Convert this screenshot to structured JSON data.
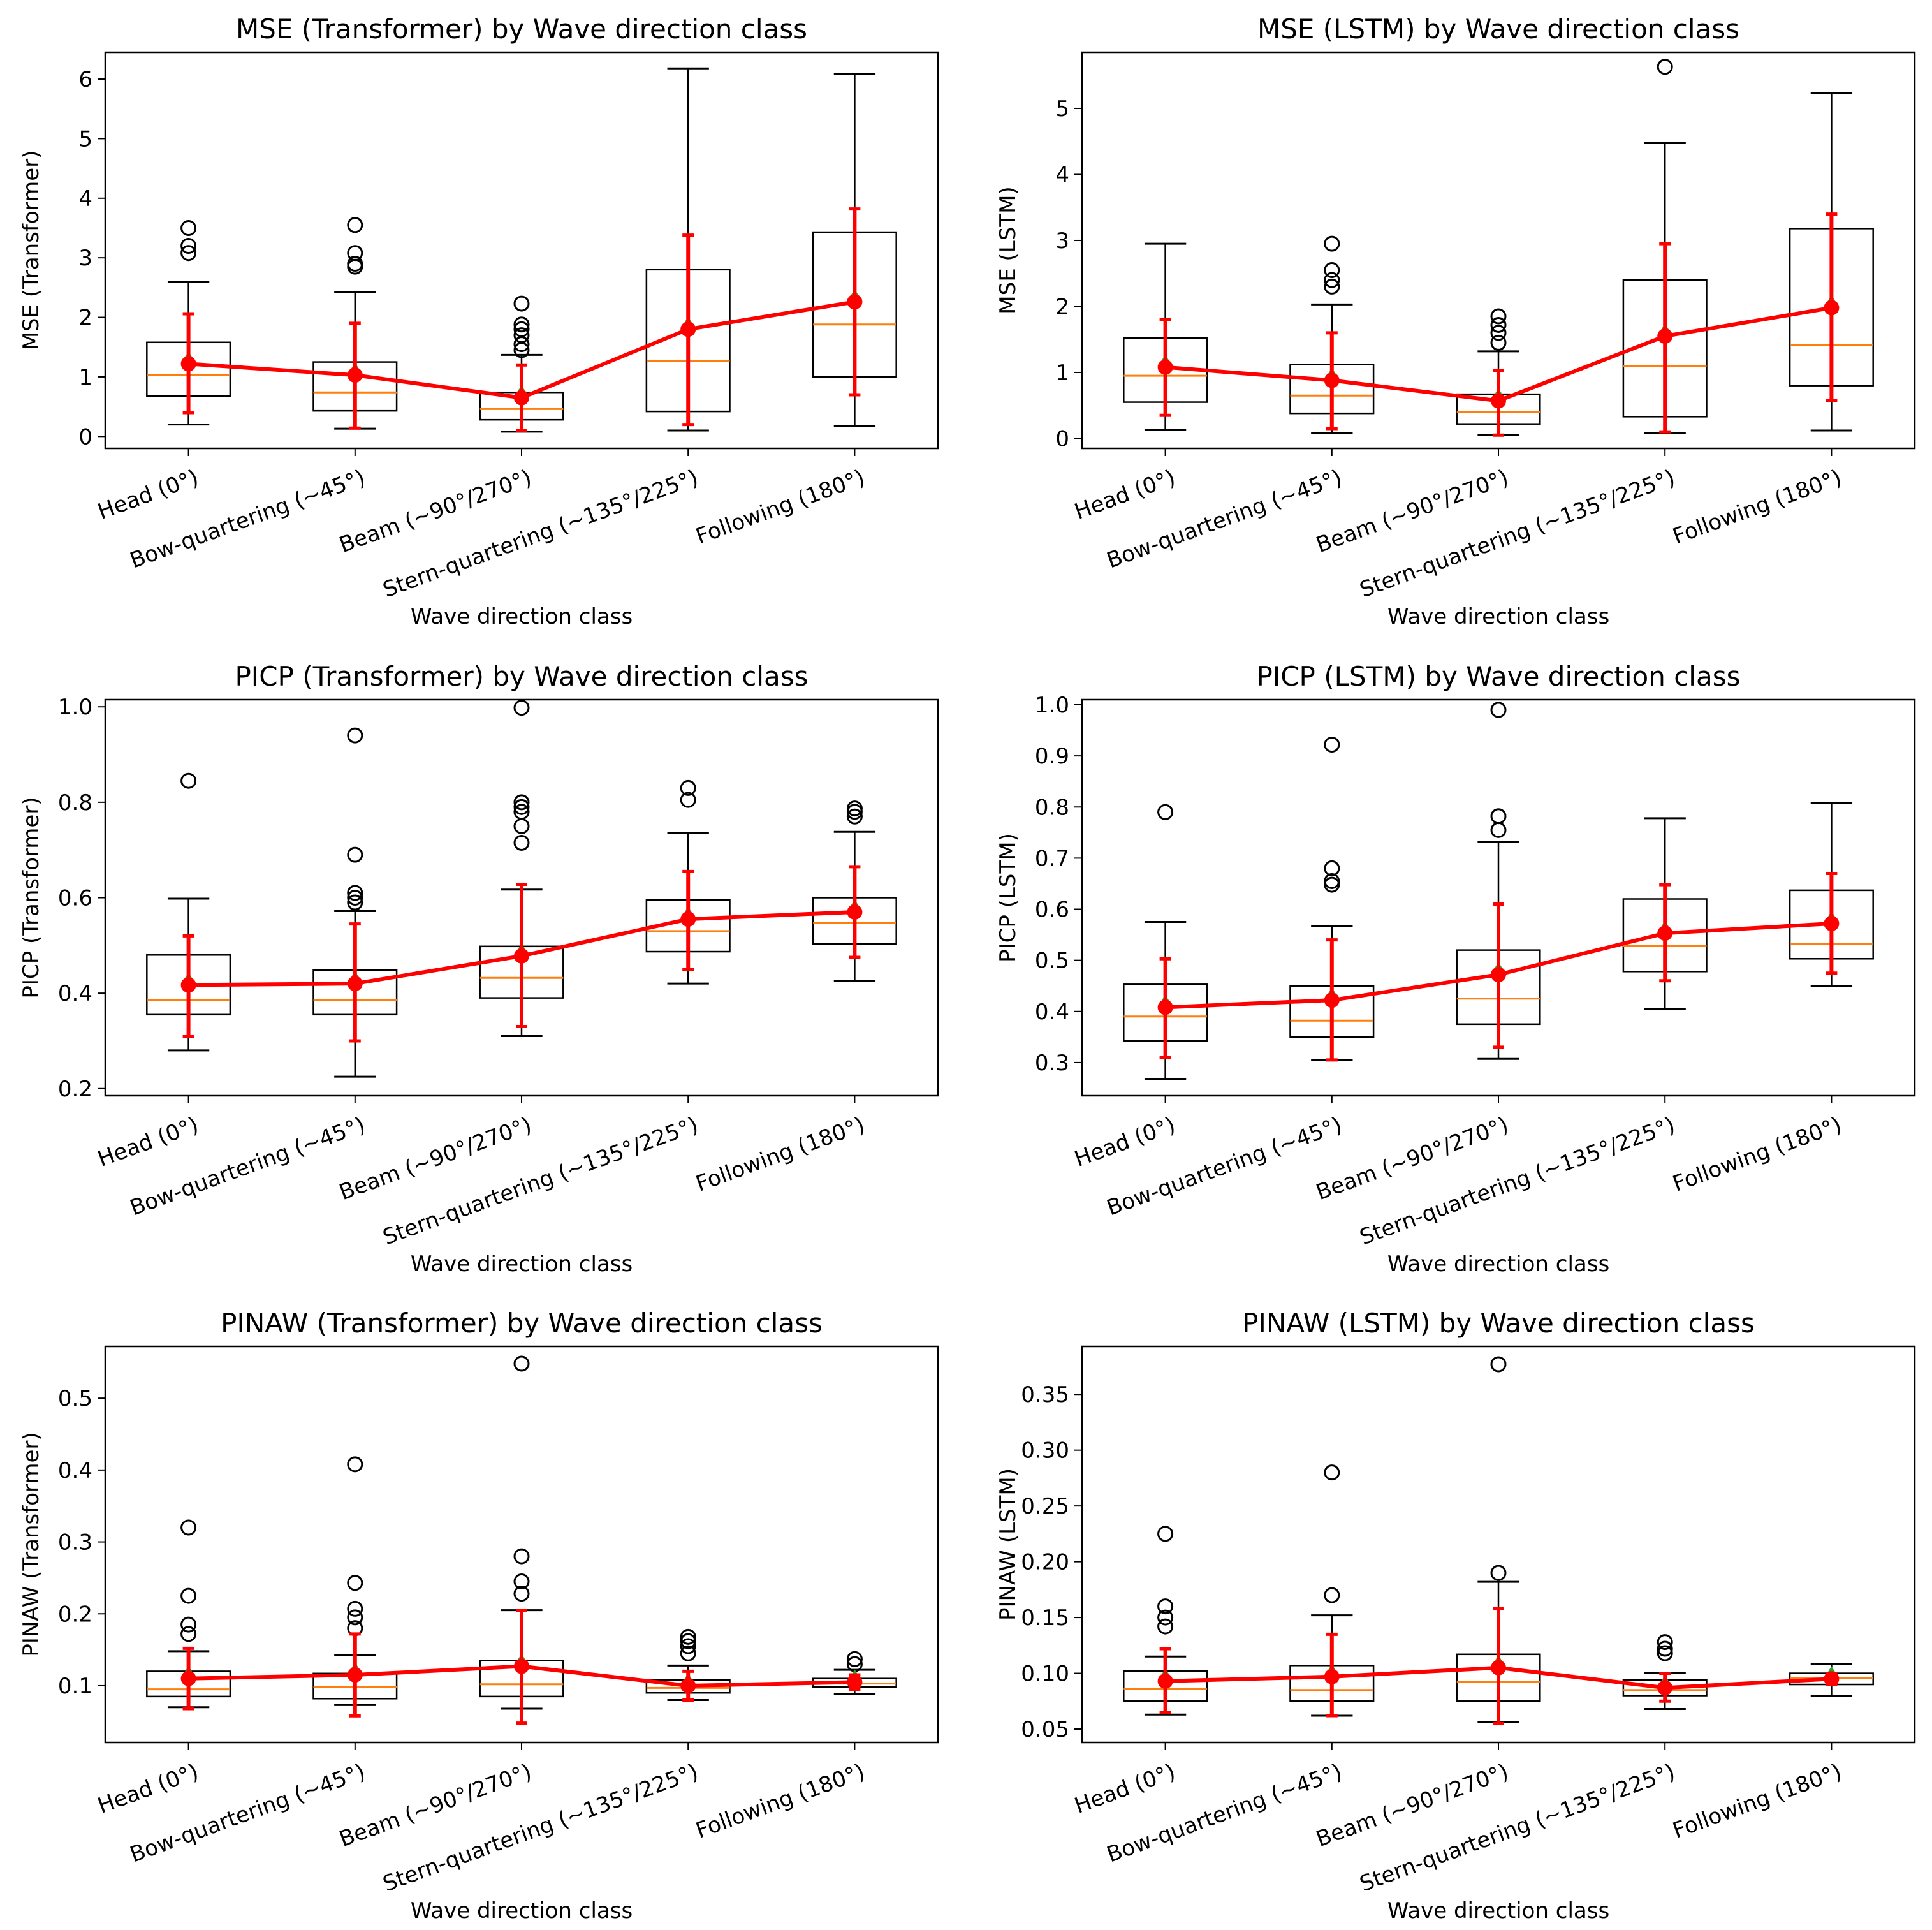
{
  "colors": {
    "box": "#000000",
    "median": "#ff7f0e",
    "mean_line": "#ff0000",
    "mean_marker": "#2ca02c"
  },
  "chart_data": [
    {
      "type": "box",
      "title": "MSE (Transformer) by Wave direction class",
      "xlabel": "Wave direction class",
      "ylabel": "MSE (Transformer)",
      "categories": [
        "Head (0°)",
        "Bow-quartering (~45°)",
        "Beam (~90°/270°)",
        "Stern-quartering (~135°/225°)",
        "Following (180°)"
      ],
      "ylim": [
        -0.2,
        6.45
      ],
      "yticks": [
        0,
        1,
        2,
        3,
        4,
        5,
        6
      ],
      "tick_labels": [
        "0",
        "1",
        "2",
        "3",
        "4",
        "5",
        "6"
      ],
      "boxes": [
        {
          "whislo": 0.2,
          "q1": 0.68,
          "med": 1.03,
          "q3": 1.58,
          "whishi": 2.6,
          "fliers": [
            3.08,
            3.2,
            3.5
          ],
          "mean": 1.22,
          "err": [
            0.4,
            2.06
          ]
        },
        {
          "whislo": 0.13,
          "q1": 0.43,
          "med": 0.74,
          "q3": 1.25,
          "whishi": 2.42,
          "fliers": [
            2.85,
            2.9,
            3.08,
            3.55
          ],
          "mean": 1.03,
          "err": [
            0.14,
            1.9
          ]
        },
        {
          "whislo": 0.08,
          "q1": 0.28,
          "med": 0.46,
          "q3": 0.74,
          "whishi": 1.37,
          "fliers": [
            1.45,
            1.55,
            1.7,
            1.8,
            1.88,
            2.23
          ],
          "mean": 0.65,
          "err": [
            0.1,
            1.2
          ]
        },
        {
          "whislo": 0.1,
          "q1": 0.42,
          "med": 1.27,
          "q3": 2.8,
          "whishi": 6.18,
          "fliers": [],
          "mean": 1.8,
          "err": [
            0.2,
            3.38
          ]
        },
        {
          "whislo": 0.17,
          "q1": 1.0,
          "med": 1.88,
          "q3": 3.43,
          "whishi": 6.08,
          "fliers": [],
          "mean": 2.26,
          "err": [
            0.7,
            3.82
          ]
        }
      ]
    },
    {
      "type": "box",
      "title": "MSE (LSTM) by Wave direction class",
      "xlabel": "Wave direction class",
      "ylabel": "MSE (LSTM)",
      "categories": [
        "Head (0°)",
        "Bow-quartering (~45°)",
        "Beam (~90°/270°)",
        "Stern-quartering (~135°/225°)",
        "Following (180°)"
      ],
      "ylim": [
        -0.15,
        5.85
      ],
      "yticks": [
        0,
        1,
        2,
        3,
        4,
        5
      ],
      "tick_labels": [
        "0",
        "1",
        "2",
        "3",
        "4",
        "5"
      ],
      "boxes": [
        {
          "whislo": 0.13,
          "q1": 0.55,
          "med": 0.95,
          "q3": 1.52,
          "whishi": 2.95,
          "fliers": [],
          "mean": 1.08,
          "err": [
            0.35,
            1.8
          ]
        },
        {
          "whislo": 0.08,
          "q1": 0.38,
          "med": 0.65,
          "q3": 1.12,
          "whishi": 2.03,
          "fliers": [
            2.3,
            2.4,
            2.55,
            2.95
          ],
          "mean": 0.88,
          "err": [
            0.15,
            1.6
          ]
        },
        {
          "whislo": 0.05,
          "q1": 0.22,
          "med": 0.4,
          "q3": 0.67,
          "whishi": 1.32,
          "fliers": [
            1.45,
            1.6,
            1.72,
            1.85
          ],
          "mean": 0.57,
          "err": [
            0.05,
            1.03
          ]
        },
        {
          "whislo": 0.08,
          "q1": 0.33,
          "med": 1.1,
          "q3": 2.4,
          "whishi": 4.48,
          "fliers": [
            5.63
          ],
          "mean": 1.55,
          "err": [
            0.1,
            2.95
          ]
        },
        {
          "whislo": 0.12,
          "q1": 0.8,
          "med": 1.42,
          "q3": 3.18,
          "whishi": 5.23,
          "fliers": [],
          "mean": 1.98,
          "err": [
            0.57,
            3.4
          ]
        }
      ]
    },
    {
      "type": "box",
      "title": "PICP (Transformer) by Wave direction class",
      "xlabel": "Wave direction class",
      "ylabel": "PICP (Transformer)",
      "categories": [
        "Head (0°)",
        "Bow-quartering (~45°)",
        "Beam (~90°/270°)",
        "Stern-quartering (~135°/225°)",
        "Following (180°)"
      ],
      "ylim": [
        0.185,
        1.015
      ],
      "yticks": [
        0.2,
        0.4,
        0.6,
        0.8,
        1.0
      ],
      "tick_labels": [
        "0.2",
        "0.4",
        "0.6",
        "0.8",
        "1.0"
      ],
      "boxes": [
        {
          "whislo": 0.28,
          "q1": 0.355,
          "med": 0.385,
          "q3": 0.48,
          "whishi": 0.598,
          "fliers": [
            0.845
          ],
          "mean": 0.417,
          "err": [
            0.31,
            0.52
          ]
        },
        {
          "whislo": 0.225,
          "q1": 0.355,
          "med": 0.385,
          "q3": 0.448,
          "whishi": 0.572,
          "fliers": [
            0.59,
            0.6,
            0.61,
            0.69,
            0.94
          ],
          "mean": 0.42,
          "err": [
            0.3,
            0.545
          ]
        },
        {
          "whislo": 0.31,
          "q1": 0.39,
          "med": 0.432,
          "q3": 0.498,
          "whishi": 0.617,
          "fliers": [
            0.715,
            0.75,
            0.78,
            0.79,
            0.8,
            0.998
          ],
          "mean": 0.478,
          "err": [
            0.33,
            0.628
          ]
        },
        {
          "whislo": 0.42,
          "q1": 0.487,
          "med": 0.53,
          "q3": 0.595,
          "whishi": 0.735,
          "fliers": [
            0.805,
            0.83
          ],
          "mean": 0.555,
          "err": [
            0.45,
            0.655
          ]
        },
        {
          "whislo": 0.425,
          "q1": 0.503,
          "med": 0.547,
          "q3": 0.6,
          "whishi": 0.738,
          "fliers": [
            0.77,
            0.78,
            0.787
          ],
          "mean": 0.57,
          "err": [
            0.475,
            0.665
          ]
        }
      ]
    },
    {
      "type": "box",
      "title": "PICP (LSTM) by Wave direction class",
      "xlabel": "Wave direction class",
      "ylabel": "PICP (LSTM)",
      "categories": [
        "Head (0°)",
        "Bow-quartering (~45°)",
        "Beam (~90°/270°)",
        "Stern-quartering (~135°/225°)",
        "Following (180°)"
      ],
      "ylim": [
        0.235,
        1.01
      ],
      "yticks": [
        0.3,
        0.4,
        0.5,
        0.6,
        0.7,
        0.8,
        0.9,
        1.0
      ],
      "tick_labels": [
        "0.3",
        "0.4",
        "0.5",
        "0.6",
        "0.7",
        "0.8",
        "0.9",
        "1.0"
      ],
      "boxes": [
        {
          "whislo": 0.268,
          "q1": 0.342,
          "med": 0.39,
          "q3": 0.453,
          "whishi": 0.575,
          "fliers": [
            0.79
          ],
          "mean": 0.408,
          "err": [
            0.31,
            0.503
          ]
        },
        {
          "whislo": 0.305,
          "q1": 0.35,
          "med": 0.382,
          "q3": 0.45,
          "whishi": 0.567,
          "fliers": [
            0.648,
            0.655,
            0.68,
            0.922
          ],
          "mean": 0.422,
          "err": [
            0.305,
            0.54
          ]
        },
        {
          "whislo": 0.307,
          "q1": 0.375,
          "med": 0.425,
          "q3": 0.52,
          "whishi": 0.732,
          "fliers": [
            0.755,
            0.782,
            0.99
          ],
          "mean": 0.472,
          "err": [
            0.33,
            0.61
          ]
        },
        {
          "whislo": 0.405,
          "q1": 0.478,
          "med": 0.528,
          "q3": 0.62,
          "whishi": 0.778,
          "fliers": [],
          "mean": 0.553,
          "err": [
            0.46,
            0.648
          ]
        },
        {
          "whislo": 0.45,
          "q1": 0.503,
          "med": 0.532,
          "q3": 0.637,
          "whishi": 0.808,
          "fliers": [],
          "mean": 0.572,
          "err": [
            0.475,
            0.67
          ]
        }
      ]
    },
    {
      "type": "box",
      "title": "PINAW (Transformer) by Wave direction class",
      "xlabel": "Wave direction class",
      "ylabel": "PINAW (Transformer)",
      "categories": [
        "Head (0°)",
        "Bow-quartering (~45°)",
        "Beam (~90°/270°)",
        "Stern-quartering (~135°/225°)",
        "Following (180°)"
      ],
      "ylim": [
        0.021,
        0.572
      ],
      "yticks": [
        0.1,
        0.2,
        0.3,
        0.4,
        0.5
      ],
      "tick_labels": [
        "0.1",
        "0.2",
        "0.3",
        "0.4",
        "0.5"
      ],
      "boxes": [
        {
          "whislo": 0.07,
          "q1": 0.085,
          "med": 0.095,
          "q3": 0.12,
          "whishi": 0.148,
          "fliers": [
            0.172,
            0.185,
            0.225,
            0.32
          ],
          "mean": 0.11,
          "err": [
            0.068,
            0.152
          ]
        },
        {
          "whislo": 0.073,
          "q1": 0.082,
          "med": 0.098,
          "q3": 0.117,
          "whishi": 0.143,
          "fliers": [
            0.18,
            0.195,
            0.207,
            0.243,
            0.408
          ],
          "mean": 0.115,
          "err": [
            0.058,
            0.172
          ]
        },
        {
          "whislo": 0.068,
          "q1": 0.085,
          "med": 0.102,
          "q3": 0.135,
          "whishi": 0.205,
          "fliers": [
            0.228,
            0.245,
            0.28,
            0.548
          ],
          "mean": 0.127,
          "err": [
            0.048,
            0.205
          ]
        },
        {
          "whislo": 0.08,
          "q1": 0.09,
          "med": 0.097,
          "q3": 0.108,
          "whishi": 0.128,
          "fliers": [
            0.145,
            0.155,
            0.162,
            0.168
          ],
          "mean": 0.1,
          "err": [
            0.08,
            0.12
          ]
        },
        {
          "whislo": 0.088,
          "q1": 0.098,
          "med": 0.103,
          "q3": 0.11,
          "whishi": 0.122,
          "fliers": [
            0.13,
            0.137
          ],
          "mean": 0.105,
          "err": [
            0.095,
            0.115
          ]
        }
      ]
    },
    {
      "type": "box",
      "title": "PINAW (LSTM) by Wave direction class",
      "xlabel": "Wave direction class",
      "ylabel": "PINAW (LSTM)",
      "categories": [
        "Head (0°)",
        "Bow-quartering (~45°)",
        "Beam (~90°/270°)",
        "Stern-quartering (~135°/225°)",
        "Following (180°)"
      ],
      "ylim": [
        0.038,
        0.393
      ],
      "yticks": [
        0.05,
        0.1,
        0.15,
        0.2,
        0.25,
        0.3,
        0.35
      ],
      "tick_labels": [
        "0.05",
        "0.10",
        "0.15",
        "0.20",
        "0.25",
        "0.30",
        "0.35"
      ],
      "boxes": [
        {
          "whislo": 0.063,
          "q1": 0.075,
          "med": 0.086,
          "q3": 0.102,
          "whishi": 0.115,
          "fliers": [
            0.142,
            0.15,
            0.16,
            0.225
          ],
          "mean": 0.093,
          "err": [
            0.065,
            0.122
          ]
        },
        {
          "whislo": 0.062,
          "q1": 0.075,
          "med": 0.085,
          "q3": 0.107,
          "whishi": 0.152,
          "fliers": [
            0.17,
            0.28
          ],
          "mean": 0.097,
          "err": [
            0.062,
            0.135
          ]
        },
        {
          "whislo": 0.056,
          "q1": 0.075,
          "med": 0.092,
          "q3": 0.117,
          "whishi": 0.182,
          "fliers": [
            0.19,
            0.377
          ],
          "mean": 0.105,
          "err": [
            0.055,
            0.158
          ]
        },
        {
          "whislo": 0.068,
          "q1": 0.08,
          "med": 0.085,
          "q3": 0.094,
          "whishi": 0.1,
          "fliers": [
            0.118,
            0.122,
            0.128
          ],
          "mean": 0.087,
          "err": [
            0.075,
            0.1
          ]
        },
        {
          "whislo": 0.08,
          "q1": 0.09,
          "med": 0.096,
          "q3": 0.1,
          "whishi": 0.108,
          "fliers": [],
          "mean": 0.095,
          "err": [
            0.09,
            0.1
          ]
        }
      ]
    }
  ]
}
